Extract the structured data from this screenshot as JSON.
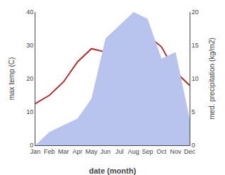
{
  "chart_data": {
    "type": "line",
    "xlabel": "date (month)",
    "ylabel": "max temp (C)",
    "y2label": "med. precipitation (kg/m2)",
    "categories": [
      "Jan",
      "Feb",
      "Mar",
      "Apr",
      "May",
      "Jun",
      "Jul",
      "Aug",
      "Sep",
      "Oct",
      "Nov",
      "Dec"
    ],
    "series": [
      {
        "type": "area",
        "axis": "y2",
        "color": "#b8c4ee",
        "values": [
          0,
          2,
          3,
          4,
          7,
          16,
          18,
          20,
          19,
          13,
          14,
          4
        ]
      },
      {
        "type": "line",
        "color": "#b03030",
        "values": [
          12.5,
          15.0,
          19.0,
          25.0,
          29.0,
          28.0,
          35.5,
          39.0,
          33.0,
          29.5,
          22.0,
          18.0
        ]
      }
    ],
    "ylim": [
      0,
      40
    ],
    "yticks": [
      0,
      10,
      20,
      30,
      40
    ],
    "y2lim": [
      0,
      20
    ],
    "y2ticks": [
      0,
      5,
      10,
      15,
      20
    ],
    "grid": false
  }
}
